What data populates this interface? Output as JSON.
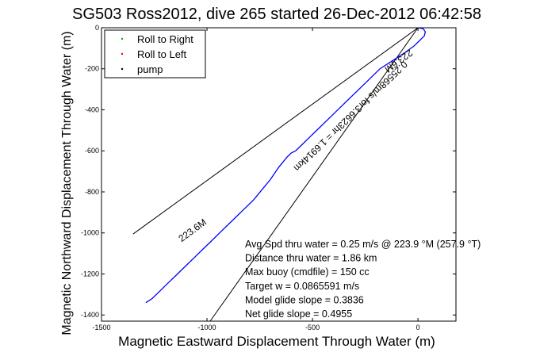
{
  "chart_data": {
    "type": "line",
    "title": "SG503 Ross2012, dive 265 started 26-Dec-2012 06:42:58",
    "xlabel": "Magnetic Eastward Displacement Through Water (m)",
    "ylabel": "Magnetic Northward Displacement Through Water (m)",
    "xlim": [
      -1500,
      180
    ],
    "ylim": [
      -1430,
      0
    ],
    "xticks": [
      -1500,
      -1000,
      -500,
      0
    ],
    "yticks": [
      0,
      -200,
      -400,
      -600,
      -800,
      -1000,
      -1200,
      -1400
    ],
    "grid": false,
    "legend_position": "top-left",
    "legend": [
      {
        "label": "Roll to Right",
        "color": "#00b000"
      },
      {
        "label": "Roll to Left",
        "color": "#ff0000"
      },
      {
        "label": "pump",
        "color": "#000000"
      }
    ],
    "series": [
      {
        "color": "#0000ff",
        "x": [
          0,
          25,
          35,
          30,
          15,
          0,
          -20,
          -60,
          -120,
          -180,
          -240,
          -300,
          -360,
          -420,
          -480,
          -520,
          -560,
          -580,
          -600,
          -620,
          -660,
          -700,
          -740,
          -780,
          -820,
          -860,
          -900,
          -940,
          -980,
          -1020,
          -1060,
          -1100,
          -1140,
          -1180,
          -1220,
          -1260,
          -1290
        ],
        "y": [
          0,
          -5,
          -20,
          -40,
          -55,
          -70,
          -90,
          -120,
          -160,
          -200,
          -260,
          -320,
          -380,
          -440,
          -500,
          -540,
          -580,
          -600,
          -610,
          -630,
          -680,
          -740,
          -790,
          -840,
          -880,
          -920,
          -960,
          -1000,
          -1040,
          -1080,
          -1120,
          -1160,
          -1200,
          -1240,
          -1280,
          -1320,
          -1340
        ]
      }
    ],
    "lines": [
      {
        "color": "#000000",
        "x": [
          0,
          -1350
        ],
        "y": [
          0,
          -1005
        ]
      },
      {
        "color": "#000000",
        "x": [
          0,
          -985
        ],
        "y": [
          0,
          -1430
        ]
      }
    ],
    "line_labels": [
      {
        "text": "223.6M",
        "x": -1060,
        "y": -1000,
        "angle_deg": -36
      },
      {
        "text": "223.6M",
        "x": -100,
        "y": -150,
        "angle_deg": 144
      },
      {
        "text": "0.25568m/s for3.6623hr = 1.6914km",
        "x": -330,
        "y": -420,
        "angle_deg": 136
      }
    ],
    "annotations": [
      "Avg Spd thru water = 0.25 m/s @ 223.9    °M (257.9 °T)",
      "Distance thru water = 1.86 km",
      "Max buoy (cmdfile) = 150 cc",
      "Target w = 0.0865591 m/s",
      "Model glide slope = 0.3836",
      "Net glide slope = 0.4955"
    ]
  }
}
